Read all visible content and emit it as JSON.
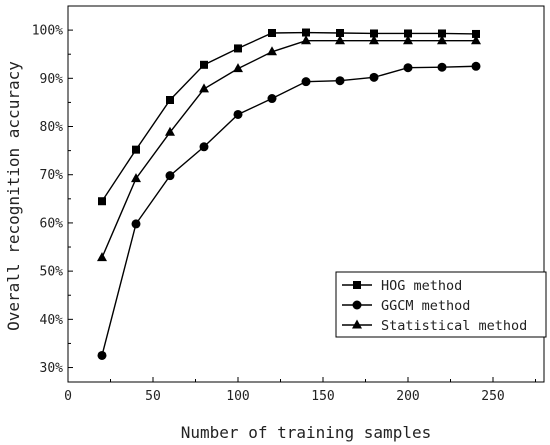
{
  "chart_data": {
    "type": "line",
    "title": "",
    "xlabel": "Number of training samples",
    "ylabel": "Overall recognition accuracy",
    "xlim": [
      0,
      280
    ],
    "ylim": [
      27,
      105
    ],
    "x_ticks": [
      0,
      50,
      100,
      150,
      200,
      250
    ],
    "y_ticks": [
      30,
      40,
      50,
      60,
      70,
      80,
      90,
      100
    ],
    "y_tick_labels": [
      "30%",
      "40%",
      "50%",
      "60%",
      "70%",
      "80%",
      "90%",
      "100%"
    ],
    "grid": false,
    "legend_position": "bottom-right",
    "x": [
      20,
      40,
      60,
      80,
      100,
      120,
      140,
      160,
      180,
      200,
      220,
      240
    ],
    "series": [
      {
        "name": "HOG method",
        "marker": "square",
        "values": [
          64.5,
          75.2,
          85.5,
          92.8,
          96.2,
          99.4,
          99.5,
          99.4,
          99.3,
          99.3,
          99.3,
          99.2
        ]
      },
      {
        "name": "GGCM method",
        "marker": "circle",
        "values": [
          32.5,
          59.8,
          69.8,
          75.8,
          82.5,
          85.8,
          89.3,
          89.5,
          90.2,
          92.2,
          92.3,
          92.5
        ]
      },
      {
        "name": "Statistical method",
        "marker": "triangle",
        "values": [
          52.8,
          69.2,
          78.8,
          87.8,
          92.0,
          95.5,
          97.8,
          97.8,
          97.8,
          97.8,
          97.8,
          97.8
        ]
      }
    ]
  }
}
